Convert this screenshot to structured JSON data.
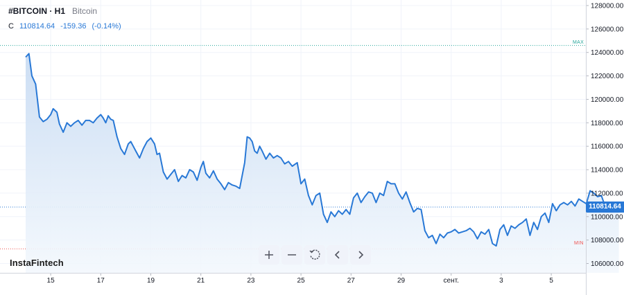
{
  "header": {
    "symbol": "#BITCOIN · H1",
    "description": "Bitcoin",
    "close_label": "C",
    "close_value": "110814.64",
    "change": "-159.36",
    "change_pct": "(-0.14%)"
  },
  "brand": "InstaFintech",
  "price_tag": "110814.64",
  "markers": {
    "max": "MAX",
    "min": "MIN"
  },
  "toolbar": [
    {
      "name": "zoom-in",
      "icon": "plus-icon"
    },
    {
      "name": "zoom-out",
      "icon": "minus-icon"
    },
    {
      "name": "reset",
      "icon": "reset-icon"
    },
    {
      "name": "scroll-left",
      "icon": "chevron-left-icon"
    },
    {
      "name": "scroll-right",
      "icon": "chevron-right-icon"
    }
  ],
  "colors": {
    "line": "#2878d6",
    "area_top": "#c9dcf3",
    "area_bottom": "#f3f8fd",
    "grid": "#f0f3fa",
    "max": "#26a69a",
    "min": "#ef5350"
  },
  "chart_data": {
    "type": "area",
    "title": "#BITCOIN · H1",
    "subtitle": "Bitcoin",
    "ylim": [
      105000,
      128500
    ],
    "yticks": [
      "106000.00",
      "108000.00",
      "110000.00",
      "112000.00",
      "114000.00",
      "116000.00",
      "118000.00",
      "120000.00",
      "122000.00",
      "124000.00",
      "126000.00",
      "128000.00"
    ],
    "xticks": [
      {
        "label": "15",
        "t": 1.0
      },
      {
        "label": "17",
        "t": 3.0
      },
      {
        "label": "19",
        "t": 5.0
      },
      {
        "label": "21",
        "t": 7.0
      },
      {
        "label": "23",
        "t": 9.0
      },
      {
        "label": "25",
        "t": 11.0
      },
      {
        "label": "27",
        "t": 13.0
      },
      {
        "label": "29",
        "t": 15.0
      },
      {
        "label": "сент.",
        "t": 17.0
      },
      {
        "label": "3",
        "t": 19.0
      },
      {
        "label": "5",
        "t": 21.0
      }
    ],
    "max_level": 124600,
    "min_level": 107250,
    "last_value": 110814.64,
    "series": [
      {
        "values": [
          [
            0.0,
            123600
          ],
          [
            0.13,
            123900
          ],
          [
            0.25,
            122000
          ],
          [
            0.4,
            121300
          ],
          [
            0.55,
            118500
          ],
          [
            0.7,
            118100
          ],
          [
            0.85,
            118300
          ],
          [
            1.0,
            118700
          ],
          [
            1.1,
            119200
          ],
          [
            1.25,
            118900
          ],
          [
            1.35,
            117900
          ],
          [
            1.5,
            117200
          ],
          [
            1.65,
            118000
          ],
          [
            1.8,
            117700
          ],
          [
            1.95,
            118000
          ],
          [
            2.1,
            118200
          ],
          [
            2.25,
            117800
          ],
          [
            2.4,
            118200
          ],
          [
            2.55,
            118200
          ],
          [
            2.7,
            118000
          ],
          [
            2.85,
            118400
          ],
          [
            3.0,
            118700
          ],
          [
            3.1,
            118400
          ],
          [
            3.2,
            118000
          ],
          [
            3.3,
            118600
          ],
          [
            3.4,
            118300
          ],
          [
            3.5,
            118200
          ],
          [
            3.65,
            116800
          ],
          [
            3.8,
            115800
          ],
          [
            3.95,
            115300
          ],
          [
            4.1,
            116200
          ],
          [
            4.2,
            116400
          ],
          [
            4.3,
            116000
          ],
          [
            4.4,
            115600
          ],
          [
            4.55,
            115000
          ],
          [
            4.7,
            115800
          ],
          [
            4.85,
            116400
          ],
          [
            5.0,
            116700
          ],
          [
            5.15,
            116200
          ],
          [
            5.25,
            115300
          ],
          [
            5.35,
            115400
          ],
          [
            5.5,
            113800
          ],
          [
            5.65,
            113200
          ],
          [
            5.8,
            113600
          ],
          [
            5.95,
            114000
          ],
          [
            6.1,
            113000
          ],
          [
            6.25,
            113500
          ],
          [
            6.4,
            113300
          ],
          [
            6.55,
            114000
          ],
          [
            6.7,
            113800
          ],
          [
            6.85,
            113100
          ],
          [
            7.0,
            114200
          ],
          [
            7.1,
            114700
          ],
          [
            7.2,
            113700
          ],
          [
            7.35,
            113300
          ],
          [
            7.5,
            113900
          ],
          [
            7.65,
            113200
          ],
          [
            7.8,
            112800
          ],
          [
            7.95,
            112300
          ],
          [
            8.1,
            112900
          ],
          [
            8.25,
            112700
          ],
          [
            8.4,
            112600
          ],
          [
            8.55,
            112400
          ],
          [
            8.75,
            114600
          ],
          [
            8.85,
            116800
          ],
          [
            8.95,
            116700
          ],
          [
            9.05,
            116400
          ],
          [
            9.15,
            115600
          ],
          [
            9.25,
            115400
          ],
          [
            9.35,
            116000
          ],
          [
            9.45,
            115600
          ],
          [
            9.6,
            114900
          ],
          [
            9.75,
            115400
          ],
          [
            9.9,
            115000
          ],
          [
            10.05,
            115200
          ],
          [
            10.2,
            115000
          ],
          [
            10.35,
            114500
          ],
          [
            10.5,
            114700
          ],
          [
            10.65,
            114300
          ],
          [
            10.85,
            114600
          ],
          [
            11.0,
            112800
          ],
          [
            11.15,
            113200
          ],
          [
            11.3,
            111800
          ],
          [
            11.45,
            111000
          ],
          [
            11.6,
            111800
          ],
          [
            11.75,
            112000
          ],
          [
            11.9,
            110200
          ],
          [
            12.05,
            109500
          ],
          [
            12.2,
            110400
          ],
          [
            12.35,
            110000
          ],
          [
            12.5,
            110500
          ],
          [
            12.65,
            110200
          ],
          [
            12.8,
            110600
          ],
          [
            12.95,
            110200
          ],
          [
            13.1,
            111600
          ],
          [
            13.25,
            112000
          ],
          [
            13.4,
            111200
          ],
          [
            13.55,
            111700
          ],
          [
            13.7,
            112100
          ],
          [
            13.85,
            112000
          ],
          [
            14.0,
            111200
          ],
          [
            14.15,
            112000
          ],
          [
            14.3,
            111800
          ],
          [
            14.45,
            113000
          ],
          [
            14.6,
            112800
          ],
          [
            14.75,
            112800
          ],
          [
            14.9,
            112000
          ],
          [
            15.05,
            111500
          ],
          [
            15.2,
            112100
          ],
          [
            15.35,
            111200
          ],
          [
            15.5,
            110400
          ],
          [
            15.65,
            110700
          ],
          [
            15.8,
            110600
          ],
          [
            15.95,
            108800
          ],
          [
            16.1,
            108200
          ],
          [
            16.25,
            108400
          ],
          [
            16.4,
            107700
          ],
          [
            16.55,
            108500
          ],
          [
            16.7,
            108200
          ],
          [
            16.85,
            108600
          ],
          [
            17.0,
            108700
          ],
          [
            17.15,
            108900
          ],
          [
            17.3,
            108600
          ],
          [
            17.45,
            108700
          ],
          [
            17.6,
            108800
          ],
          [
            17.75,
            109000
          ],
          [
            17.9,
            108700
          ],
          [
            18.05,
            108100
          ],
          [
            18.2,
            108700
          ],
          [
            18.35,
            108500
          ],
          [
            18.5,
            108900
          ],
          [
            18.65,
            107700
          ],
          [
            18.8,
            107500
          ],
          [
            18.95,
            108900
          ],
          [
            19.1,
            109300
          ],
          [
            19.25,
            108400
          ],
          [
            19.4,
            109200
          ],
          [
            19.55,
            109000
          ],
          [
            19.7,
            109300
          ],
          [
            19.85,
            109500
          ],
          [
            20.0,
            109800
          ],
          [
            20.15,
            108400
          ],
          [
            20.3,
            109500
          ],
          [
            20.45,
            108900
          ],
          [
            20.6,
            110000
          ],
          [
            20.75,
            110300
          ],
          [
            20.9,
            109500
          ],
          [
            21.05,
            111100
          ],
          [
            21.2,
            110500
          ],
          [
            21.35,
            111000
          ],
          [
            21.5,
            111200
          ],
          [
            21.65,
            111000
          ],
          [
            21.8,
            111300
          ],
          [
            21.95,
            110900
          ],
          [
            22.1,
            111500
          ],
          [
            22.25,
            111300
          ],
          [
            22.4,
            111100
          ],
          [
            22.55,
            112200
          ],
          [
            22.7,
            112000
          ],
          [
            22.85,
            111700
          ],
          [
            23.0,
            111800
          ],
          [
            23.1,
            111200
          ],
          [
            23.2,
            110800
          ],
          [
            23.35,
            110600
          ],
          [
            23.5,
            111000
          ],
          [
            23.6,
            110900
          ],
          [
            23.7,
            110850
          ]
        ]
      }
    ]
  }
}
